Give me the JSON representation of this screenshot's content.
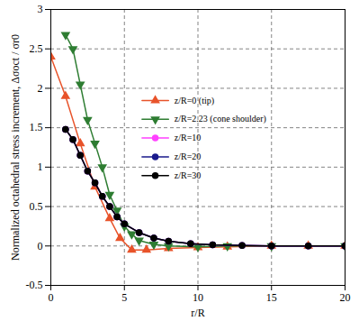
{
  "chart_data": {
    "type": "line",
    "xlabel": "r/R",
    "ylabel": "Normalized octahedral stress increment, Δσoct / σr0",
    "xlim": [
      0,
      20
    ],
    "ylim": [
      -0.5,
      3
    ],
    "xticks": [
      0,
      5,
      10,
      15,
      20
    ],
    "yticks": [
      -0.5,
      0,
      0.5,
      1,
      1.5,
      2,
      2.5,
      3
    ],
    "grid": true,
    "legend": "right",
    "series": [
      {
        "name": "z/R=0 (tip)",
        "color": "#e8532a",
        "marker": "triangle-up",
        "x": [
          0,
          1,
          2,
          3,
          4,
          4.7,
          5.5,
          6.5,
          8,
          10,
          12,
          15,
          17.5,
          20
        ],
        "values": [
          2.4,
          1.9,
          1.3,
          0.75,
          0.35,
          0.1,
          -0.05,
          -0.05,
          -0.03,
          -0.02,
          -0.01,
          0,
          0,
          0
        ]
      },
      {
        "name": "z/R=2.23 (cone shoulder)",
        "color": "#2e7d32",
        "marker": "triangle-down",
        "x": [
          1,
          1.5,
          2,
          2.5,
          3,
          3.5,
          4,
          4.5,
          5,
          5.5,
          6,
          7,
          8,
          10,
          12,
          15,
          20
        ],
        "values": [
          2.68,
          2.5,
          2.05,
          1.6,
          1.3,
          1.0,
          0.65,
          0.45,
          0.25,
          0.15,
          0.07,
          0.02,
          0,
          -0.01,
          0,
          0,
          0
        ]
      },
      {
        "name": "z/R=10",
        "color": "#ff40ff",
        "marker": "circle",
        "x": [
          1,
          1.5,
          2,
          2.5,
          3,
          3.5,
          4,
          4.5,
          5,
          6,
          7,
          8,
          9.5,
          11,
          13,
          15,
          17.5,
          20
        ],
        "values": [
          1.48,
          1.35,
          1.15,
          0.95,
          0.8,
          0.63,
          0.5,
          0.37,
          0.28,
          0.17,
          0.1,
          0.06,
          0.03,
          0.015,
          0.005,
          0,
          0,
          0
        ]
      },
      {
        "name": "z/R=20",
        "color": "#1a1a8c",
        "marker": "circle",
        "x": [
          1,
          1.5,
          2,
          2.5,
          3,
          3.5,
          4,
          4.5,
          5,
          6,
          7,
          8,
          9.5,
          11,
          13,
          15,
          17.5,
          20
        ],
        "values": [
          1.48,
          1.35,
          1.15,
          0.95,
          0.8,
          0.63,
          0.5,
          0.37,
          0.28,
          0.17,
          0.1,
          0.06,
          0.03,
          0.015,
          0.005,
          0,
          0,
          0
        ]
      },
      {
        "name": "z/R=30",
        "color": "#000000",
        "marker": "circle",
        "x": [
          1,
          1.5,
          2,
          2.5,
          3,
          3.5,
          4,
          4.5,
          5,
          6,
          7,
          8,
          9.5,
          11,
          13,
          15,
          17.5,
          20
        ],
        "values": [
          1.48,
          1.35,
          1.15,
          0.95,
          0.8,
          0.63,
          0.5,
          0.37,
          0.28,
          0.17,
          0.1,
          0.06,
          0.03,
          0.015,
          0.005,
          0,
          0,
          0
        ]
      }
    ]
  }
}
